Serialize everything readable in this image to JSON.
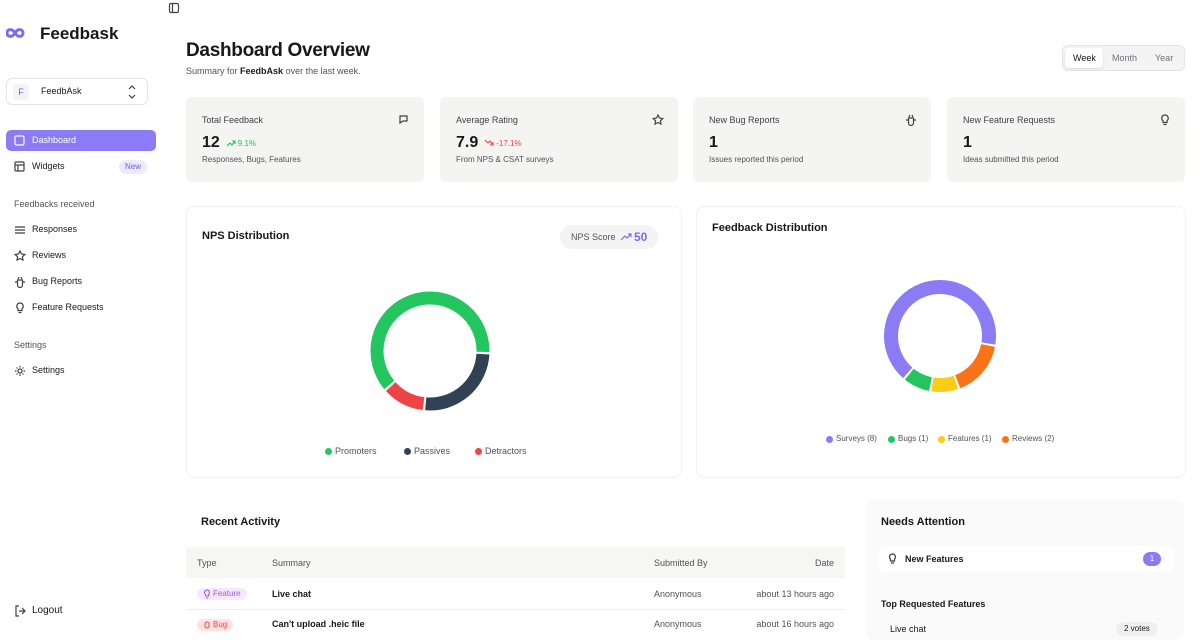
{
  "sidebar": {
    "brand": "Feedbask",
    "workspace": {
      "initial": "F",
      "name": "FeedbAsk"
    },
    "nav": [
      {
        "label": "Dashboard"
      },
      {
        "label": "Widgets",
        "badge": "New"
      }
    ],
    "sections": [
      {
        "title": "Feedbacks received",
        "items": [
          "Responses",
          "Reviews",
          "Bug Reports",
          "Feature Requests"
        ]
      },
      {
        "title": "Settings",
        "items": [
          "Settings"
        ]
      }
    ],
    "logout": "Logout"
  },
  "header": {
    "title": "Dashboard Overview",
    "subtitle_prefix": "Summary for",
    "subtitle_name": "FeedbAsk",
    "subtitle_suffix": "over the last week.",
    "periods": [
      "Week",
      "Month",
      "Year"
    ]
  },
  "stats": [
    {
      "title": "Total Feedback",
      "value": 12,
      "change": "9.1%",
      "note": "Responses, Bugs, Features"
    },
    {
      "title": "Average Rating",
      "value": 7.9,
      "change": "-17.1%",
      "note": "From NPS & CSAT surveys"
    },
    {
      "title": "New Bug Reports",
      "value": 1,
      "note": "Issues reported this period"
    },
    {
      "title": "New Feature Requests",
      "value": 1,
      "note": "Ideas submitted this period"
    }
  ],
  "chart_data": [
    {
      "type": "donut",
      "title": "NPS Distribution",
      "score_label": "NPS Score",
      "score": 50,
      "categories": [
        "Promoters",
        "Passives",
        "Detractors"
      ],
      "values": [
        62,
        26,
        12
      ],
      "colors": [
        "#22c55e",
        "#334155",
        "#ef4444"
      ]
    },
    {
      "type": "donut",
      "title": "Feedback Distribution",
      "values": [
        8,
        1,
        1,
        2
      ],
      "value_labels": [
        "Surveys (8)",
        "Bugs (1)",
        "Features (1)",
        "Reviews (2)"
      ],
      "colors": [
        "#8b7cf6",
        "#22c55e",
        "#facc15",
        "#f97316"
      ]
    }
  ],
  "recent_activity": {
    "title": "Recent Activity",
    "columns": [
      "Type",
      "Summary",
      "Submitted By",
      "Date"
    ],
    "rows": [
      [
        "Feature",
        "Live chat",
        "Anonymous",
        "about 13 hours ago"
      ],
      [
        "Bug",
        "Can't upload .heic file",
        "Anonymous",
        "about 16 hours ago"
      ]
    ]
  },
  "needs_attention": {
    "title": "Needs Attention",
    "items": [
      {
        "label": "New Features",
        "count": 1
      }
    ],
    "top_title": "Top Requested Features",
    "top": [
      {
        "label": "Live chat",
        "votes": "2 votes"
      }
    ]
  }
}
